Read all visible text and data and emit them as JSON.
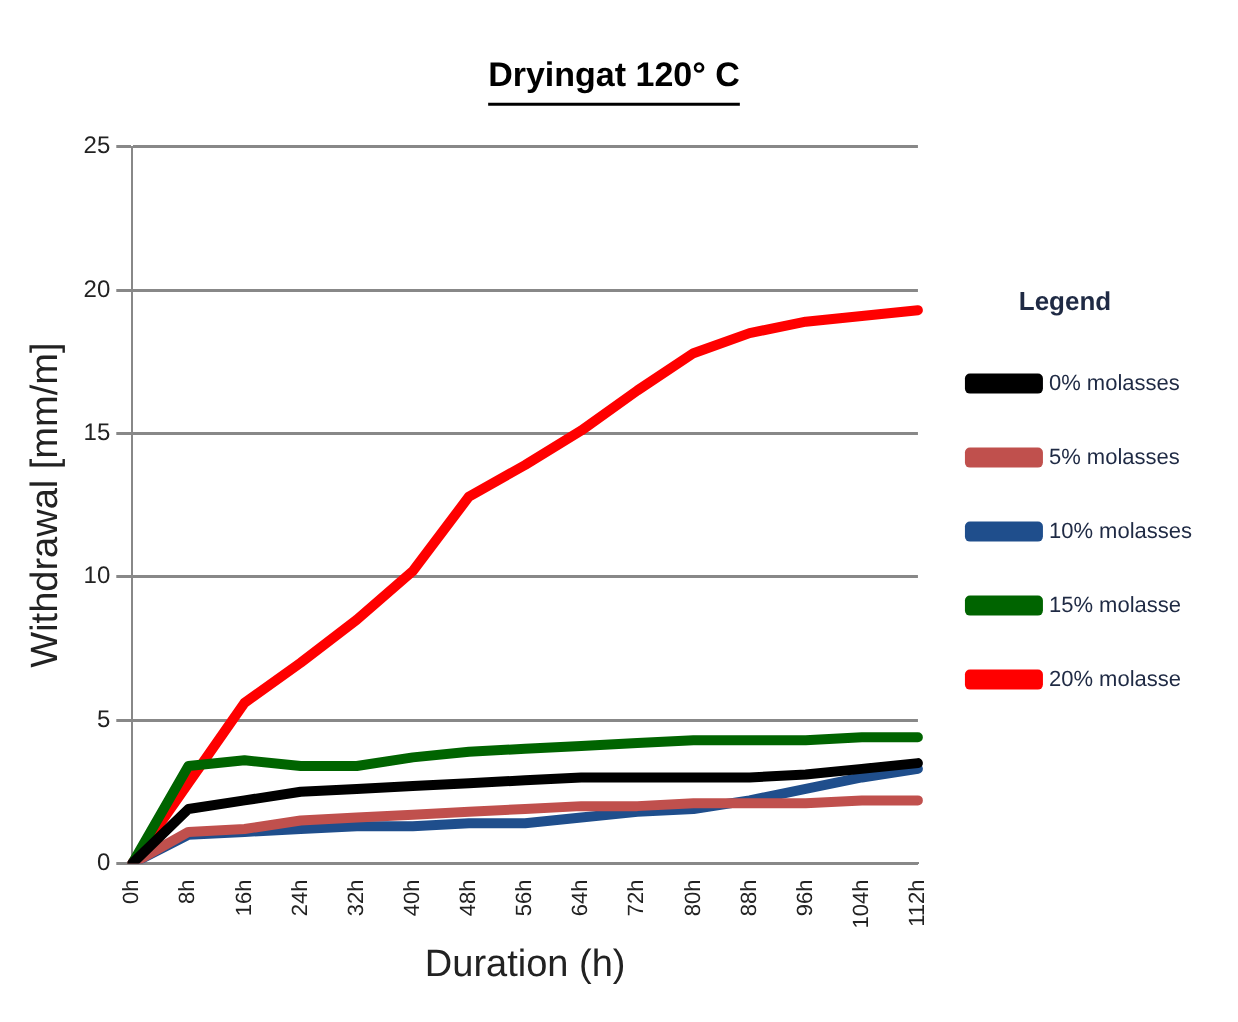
{
  "chart_data": {
    "type": "line",
    "title": "Dryingat 120° C",
    "xlabel": "Duration (h)",
    "ylabel": "Withdrawal [mm/m]",
    "legend_title": "Legend",
    "legend": "right",
    "grid": "y",
    "marker": "none",
    "line_style": "solid",
    "categories": [
      "0h",
      "8h",
      "16h",
      "24h",
      "32h",
      "40h",
      "48h",
      "56h",
      "64h",
      "72h",
      "80h",
      "88h",
      "96h",
      "104h",
      "112h"
    ],
    "ylim": [
      0,
      25
    ],
    "yticks": [
      0,
      5,
      10,
      15,
      20,
      25
    ],
    "series": [
      {
        "name": "0% molasses",
        "color": "#000000",
        "values": [
          0,
          1.9,
          2.2,
          2.5,
          2.6,
          2.7,
          2.8,
          2.9,
          3.0,
          3.0,
          3.0,
          3.0,
          3.1,
          3.3,
          3.5
        ]
      },
      {
        "name": "5% molasses",
        "color": "#c0504d",
        "values": [
          0,
          1.1,
          1.2,
          1.5,
          1.6,
          1.7,
          1.8,
          1.9,
          2.0,
          2.0,
          2.1,
          2.1,
          2.1,
          2.2,
          2.2
        ]
      },
      {
        "name": "10% molasses",
        "color": "#1f4e8c",
        "values": [
          0,
          1.0,
          1.1,
          1.2,
          1.3,
          1.3,
          1.4,
          1.4,
          1.6,
          1.8,
          1.9,
          2.2,
          2.6,
          3.0,
          3.3
        ]
      },
      {
        "name": "15% molasse",
        "color": "#006400",
        "values": [
          0,
          3.4,
          3.6,
          3.4,
          3.4,
          3.7,
          3.9,
          4.0,
          4.1,
          4.2,
          4.3,
          4.3,
          4.3,
          4.4,
          4.4
        ]
      },
      {
        "name": "20% molasse",
        "color": "#ff0000",
        "values": [
          0,
          2.8,
          5.6,
          7.0,
          8.5,
          10.2,
          12.8,
          13.9,
          15.1,
          16.5,
          17.8,
          18.5,
          18.9,
          19.1,
          19.3
        ]
      }
    ]
  }
}
